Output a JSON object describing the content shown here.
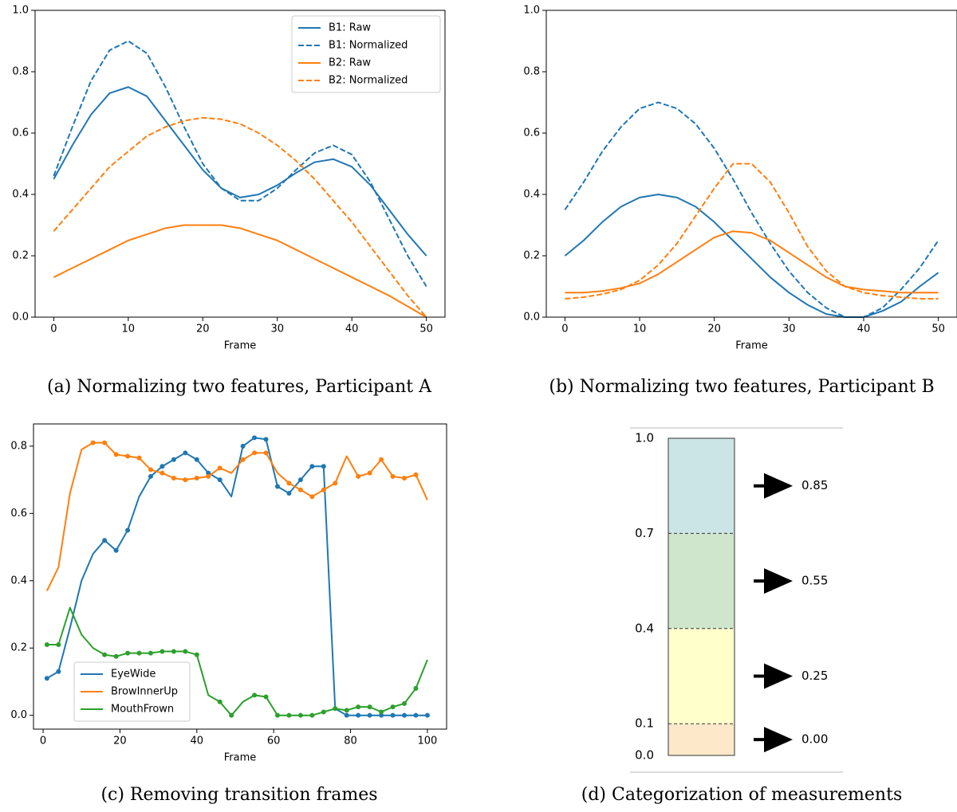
{
  "chart_data": [
    {
      "type": "line",
      "caption": "(a) Normalizing two features, Participant A",
      "xlabel": "Frame",
      "x": [
        0,
        2.5,
        5,
        7.5,
        10,
        12.5,
        15,
        17.5,
        20,
        22.5,
        25,
        27.5,
        30,
        32.5,
        35,
        37.5,
        40,
        42.5,
        45,
        47.5,
        50
      ],
      "series": [
        {
          "name": "B1: Raw",
          "color": "#1f77b4",
          "linestyle": "solid",
          "values": [
            0.45,
            0.56,
            0.66,
            0.73,
            0.75,
            0.72,
            0.64,
            0.56,
            0.48,
            0.42,
            0.39,
            0.4,
            0.43,
            0.47,
            0.505,
            0.515,
            0.49,
            0.43,
            0.35,
            0.27,
            0.2
          ]
        },
        {
          "name": "B1: Normalized",
          "color": "#1f77b4",
          "linestyle": "dashed",
          "values": [
            0.46,
            0.62,
            0.77,
            0.87,
            0.9,
            0.86,
            0.75,
            0.62,
            0.5,
            0.42,
            0.38,
            0.38,
            0.42,
            0.48,
            0.535,
            0.56,
            0.53,
            0.44,
            0.32,
            0.2,
            0.1
          ]
        },
        {
          "name": "B2: Raw",
          "color": "#ff7f0e",
          "linestyle": "solid",
          "values": [
            0.13,
            0.16,
            0.19,
            0.22,
            0.25,
            0.27,
            0.29,
            0.3,
            0.3,
            0.3,
            0.29,
            0.27,
            0.25,
            0.22,
            0.19,
            0.16,
            0.13,
            0.1,
            0.07,
            0.035,
            0.0
          ]
        },
        {
          "name": "B2: Normalized",
          "color": "#ff7f0e",
          "linestyle": "dashed",
          "values": [
            0.28,
            0.35,
            0.42,
            0.49,
            0.54,
            0.59,
            0.62,
            0.64,
            0.65,
            0.645,
            0.63,
            0.6,
            0.56,
            0.51,
            0.45,
            0.38,
            0.31,
            0.23,
            0.15,
            0.07,
            0.0
          ]
        }
      ],
      "xlim": [
        -2.5,
        52.5
      ],
      "xticks": [
        0,
        10,
        20,
        30,
        40,
        50
      ],
      "ylim": [
        0,
        1
      ],
      "yticks": [
        {
          "value": 0,
          "label": "0.0"
        },
        {
          "value": 0.2,
          "label": "0.2"
        },
        {
          "value": 0.4,
          "label": "0.4"
        },
        {
          "value": 0.6,
          "label": "0.6"
        },
        {
          "value": 0.8,
          "label": "0.8"
        },
        {
          "value": 1,
          "label": "1.0"
        }
      ],
      "legend": "upper right"
    },
    {
      "type": "line",
      "caption": "(b) Normalizing two features, Participant B",
      "xlabel": "Frame",
      "x": [
        0,
        2.5,
        5,
        7.5,
        10,
        12.5,
        15,
        17.5,
        20,
        22.5,
        25,
        27.5,
        30,
        32.5,
        35,
        37.5,
        40,
        42.5,
        45,
        47.5,
        50
      ],
      "series": [
        {
          "color": "#1f77b4",
          "linestyle": "solid",
          "values": [
            0.2,
            0.25,
            0.31,
            0.36,
            0.39,
            0.4,
            0.39,
            0.36,
            0.31,
            0.25,
            0.19,
            0.13,
            0.08,
            0.04,
            0.01,
            0.0,
            0.0,
            0.02,
            0.05,
            0.1,
            0.145
          ]
        },
        {
          "color": "#1f77b4",
          "linestyle": "dashed",
          "values": [
            0.35,
            0.44,
            0.54,
            0.62,
            0.68,
            0.7,
            0.68,
            0.63,
            0.55,
            0.45,
            0.34,
            0.24,
            0.15,
            0.08,
            0.03,
            0.0,
            0.0,
            0.03,
            0.09,
            0.16,
            0.25
          ]
        },
        {
          "color": "#ff7f0e",
          "linestyle": "solid",
          "values": [
            0.08,
            0.08,
            0.085,
            0.095,
            0.11,
            0.14,
            0.18,
            0.22,
            0.26,
            0.28,
            0.275,
            0.25,
            0.21,
            0.17,
            0.13,
            0.1,
            0.09,
            0.085,
            0.08,
            0.08,
            0.08
          ]
        },
        {
          "color": "#ff7f0e",
          "linestyle": "dashed",
          "values": [
            0.06,
            0.065,
            0.075,
            0.09,
            0.12,
            0.17,
            0.24,
            0.33,
            0.42,
            0.5,
            0.5,
            0.44,
            0.34,
            0.23,
            0.15,
            0.1,
            0.08,
            0.07,
            0.065,
            0.06,
            0.06
          ]
        }
      ],
      "xlim": [
        -2.5,
        52.5
      ],
      "xticks": [
        0,
        10,
        20,
        30,
        40,
        50
      ],
      "ylim": [
        0,
        1
      ],
      "yticks": [
        {
          "value": 0,
          "label": "0.0"
        },
        {
          "value": 0.2,
          "label": "0.2"
        },
        {
          "value": 0.4,
          "label": "0.4"
        },
        {
          "value": 0.6,
          "label": "0.6"
        },
        {
          "value": 0.8,
          "label": "0.8"
        },
        {
          "value": 1,
          "label": "1.0"
        }
      ]
    },
    {
      "type": "line",
      "caption": "(c) Removing transition frames",
      "xlabel": "Frame",
      "x": [
        1,
        4,
        7,
        10,
        13,
        16,
        19,
        22,
        25,
        28,
        31,
        34,
        37,
        40,
        43,
        46,
        49,
        52,
        55,
        58,
        61,
        64,
        67,
        70,
        73,
        76,
        79,
        82,
        85,
        88,
        91,
        94,
        97,
        100
      ],
      "series": [
        {
          "name": "EyeWide",
          "color": "#1f77b4",
          "linestyle": "solid",
          "values": [
            0.11,
            0.13,
            0.26,
            0.4,
            0.48,
            0.52,
            0.49,
            0.55,
            0.65,
            0.71,
            0.74,
            0.76,
            0.78,
            0.76,
            0.72,
            0.7,
            0.65,
            0.8,
            0.825,
            0.82,
            0.68,
            0.66,
            0.7,
            0.74,
            0.74,
            0.02,
            0.0,
            0.0,
            0.0,
            0.0,
            0.0,
            0.0,
            0.0,
            0.0
          ],
          "markers": [
            0.11,
            0.13,
            null,
            null,
            null,
            0.52,
            0.49,
            0.55,
            null,
            0.71,
            0.74,
            0.76,
            0.78,
            0.76,
            0.72,
            0.7,
            null,
            0.8,
            0.825,
            0.82,
            0.68,
            0.66,
            0.7,
            0.74,
            0.74,
            null,
            0.0,
            0.0,
            0.0,
            0.0,
            0.0,
            0.0,
            0.0,
            0.0
          ]
        },
        {
          "name": "BrowInnerUp",
          "color": "#ff7f0e",
          "linestyle": "solid",
          "values": [
            0.37,
            0.44,
            0.66,
            0.79,
            0.81,
            0.81,
            0.775,
            0.77,
            0.765,
            0.73,
            0.72,
            0.705,
            0.7,
            0.705,
            0.71,
            0.735,
            0.72,
            0.76,
            0.78,
            0.78,
            0.72,
            0.69,
            0.67,
            0.65,
            0.67,
            0.69,
            0.77,
            0.71,
            0.72,
            0.76,
            0.71,
            0.705,
            0.715,
            0.64
          ],
          "markers": [
            null,
            null,
            null,
            null,
            0.81,
            0.81,
            0.775,
            0.77,
            0.765,
            0.73,
            0.72,
            0.705,
            0.7,
            0.705,
            0.71,
            0.735,
            null,
            0.76,
            0.78,
            0.78,
            null,
            0.69,
            0.67,
            0.65,
            0.67,
            0.69,
            null,
            0.71,
            0.72,
            0.76,
            0.71,
            0.705,
            0.715,
            null
          ]
        },
        {
          "name": "MouthFrown",
          "color": "#2ca02c",
          "linestyle": "solid",
          "values": [
            0.21,
            0.21,
            0.32,
            0.24,
            0.2,
            0.18,
            0.175,
            0.185,
            0.185,
            0.185,
            0.19,
            0.19,
            0.19,
            0.18,
            0.06,
            0.04,
            0.0,
            0.04,
            0.06,
            0.055,
            0.0,
            0.0,
            0.0,
            0.0,
            0.01,
            0.02,
            0.015,
            0.025,
            0.025,
            0.01,
            0.025,
            0.035,
            0.08,
            0.165
          ],
          "markers": [
            0.21,
            0.21,
            null,
            null,
            null,
            0.18,
            0.175,
            0.185,
            0.185,
            0.185,
            0.19,
            0.19,
            0.19,
            0.18,
            null,
            0.04,
            0.0,
            null,
            0.06,
            0.055,
            0.0,
            0.0,
            0.0,
            0.0,
            0.01,
            0.02,
            0.015,
            0.025,
            0.025,
            0.01,
            0.025,
            0.035,
            0.08,
            null
          ]
        }
      ],
      "xlim": [
        -2.5,
        105
      ],
      "xticks": [
        0,
        20,
        40,
        60,
        80,
        100
      ],
      "ylim": [
        -0.041,
        0.866
      ],
      "yticks": [
        {
          "value": 0,
          "label": "0.0"
        },
        {
          "value": 0.2,
          "label": "0.2"
        },
        {
          "value": 0.4,
          "label": "0.4"
        },
        {
          "value": 0.6,
          "label": "0.6"
        },
        {
          "value": 0.8,
          "label": "0.8"
        }
      ],
      "legend": "lower left"
    },
    {
      "type": "scale",
      "caption": "(d) Categorization of measurements",
      "ylim": [
        0,
        1
      ],
      "yticks": [
        {
          "value": 0,
          "label": "0.0"
        },
        {
          "value": 0.1,
          "label": "0.1"
        },
        {
          "value": 0.4,
          "label": "0.4"
        },
        {
          "value": 0.7,
          "label": "0.7"
        },
        {
          "value": 1,
          "label": "1.0"
        }
      ],
      "colors": [
        "#fde9c9",
        "#ffffcc",
        "#cfe6cc",
        "#cbe4e6"
      ],
      "values": [
        0,
        0.25,
        0.55,
        0.85
      ],
      "value_labels": [
        "0.00",
        "0.25",
        "0.55",
        "0.85"
      ]
    }
  ]
}
